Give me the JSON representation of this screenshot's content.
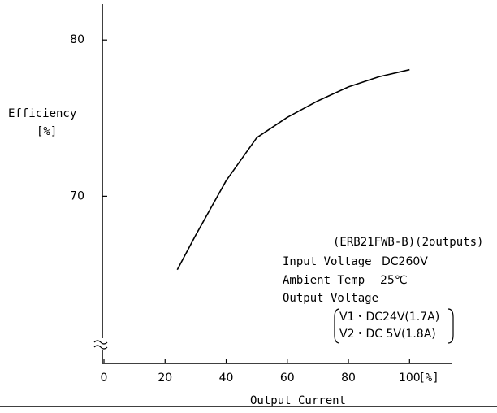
{
  "chart_data": {
    "type": "line",
    "y_label": "Efficiency",
    "y_unit": "[%]",
    "x_label": "Output Current",
    "x_unit": "[%]",
    "x": [
      24,
      30,
      40,
      50,
      60,
      70,
      80,
      90,
      100
    ],
    "series": [
      {
        "name": "ERB21FWB-B",
        "color": "#000000",
        "values": [
          65.3,
          67.5,
          71.0,
          73.75,
          75.05,
          76.1,
          77.0,
          77.65,
          78.1
        ]
      }
    ],
    "xlim": [
      0,
      114
    ],
    "xticks": [
      0,
      20,
      40,
      60,
      80,
      100
    ],
    "ylim": [
      59.3,
      82.3
    ],
    "yticks": [
      70,
      80
    ],
    "annotations": [
      "(ERB21FWB-B)(2outputs)",
      "Input Voltage",
      "DC260V",
      "Ambient Temp",
      "25℃",
      "Output Voltage",
      "V1・DC24V(1.7A)",
      "V2・DC 5V(1.8A)"
    ]
  }
}
